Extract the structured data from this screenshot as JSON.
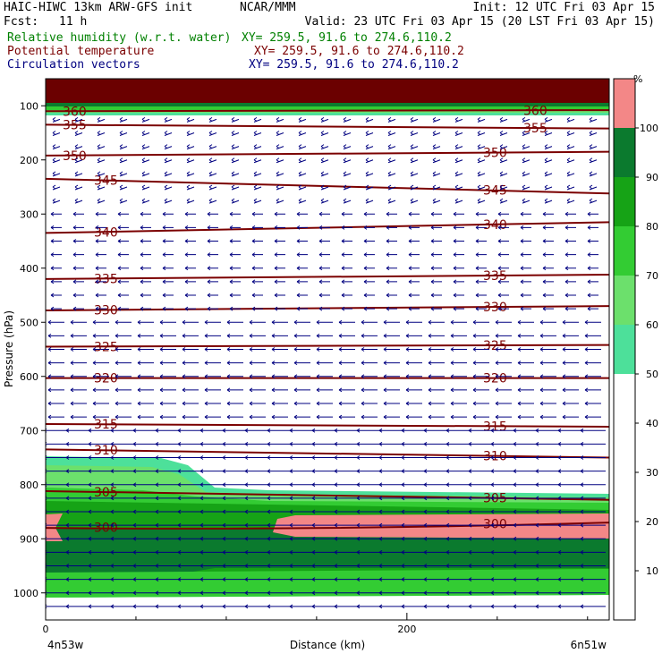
{
  "header": {
    "title": "HAIC-HIWC 13km ARW-GFS init",
    "center": "NCAR/MMM",
    "init": "Init: 12 UTC Fri 03 Apr 15",
    "fcst_label": "Fcst:",
    "fcst_value": "11 h",
    "valid": "Valid: 23 UTC Fri 03 Apr 15 (20 LST Fri 03 Apr 15)",
    "field1": "Relative humidity (w.r.t. water)",
    "field1_xy": "XY= 259.5, 91.6 to 274.6,110.2",
    "field2": "Potential temperature",
    "field2_xy": "XY= 259.5, 91.6 to 274.6,110.2",
    "field3": "Circulation vectors",
    "field3_xy": "XY= 259.5, 91.6 to 274.6,110.2"
  },
  "colors": {
    "rh_label": "#008000",
    "theta_label": "#7b0000",
    "vector_label": "#000080",
    "theta_line": "#7b0000",
    "vector": "#000080"
  },
  "chart_data": {
    "type": "heatmap",
    "xlabel": "Distance (km)",
    "ylabel": "Pressure (hPa)",
    "xlim": [
      0,
      312
    ],
    "ylim": [
      1050,
      50
    ],
    "x_ticks": [
      0,
      200
    ],
    "y_ticks": [
      100,
      200,
      300,
      400,
      500,
      600,
      700,
      800,
      900,
      1000
    ],
    "x_endpoint_labels": [
      "4n53w",
      "6n51w"
    ],
    "colorbar": {
      "unit": "%",
      "ticks": [
        10,
        20,
        30,
        40,
        50,
        60,
        70,
        80,
        90,
        100
      ],
      "levels": [
        {
          "from": 50,
          "to": 60,
          "color": "#4de09a"
        },
        {
          "from": 60,
          "to": 70,
          "color": "#6ce06c"
        },
        {
          "from": 70,
          "to": 80,
          "color": "#33cc33"
        },
        {
          "from": 80,
          "to": 90,
          "color": "#16a316"
        },
        {
          "from": 90,
          "to": 100,
          "color": "#0b7a2e"
        },
        {
          "from": 100,
          "to": 110,
          "color": "#f38787"
        }
      ]
    },
    "rh_regions": [
      {
        "level": 100,
        "color": "#6b0000",
        "pressure_top": 50,
        "pressure_bottom": 95
      },
      {
        "level": 100,
        "color": "#f38787",
        "x_from": 125,
        "x_to": 312,
        "pressure_top": 855,
        "pressure_bottom": 900
      },
      {
        "level": 90,
        "color": "#0b7a2e",
        "pressure_top": 880,
        "pressure_bottom": 960
      },
      {
        "level": 70,
        "color": "#33cc33",
        "pressure_top": 820,
        "pressure_bottom": 1010
      }
    ],
    "theta_contours": [
      {
        "label": "360",
        "p_left": 110,
        "p_right": 108
      },
      {
        "label": "355",
        "p_left": 135,
        "p_right": 142
      },
      {
        "label": "350",
        "p_left": 192,
        "p_right": 185
      },
      {
        "label": "345",
        "p_left": 235,
        "p_right": 262
      },
      {
        "label": "340",
        "p_left": 335,
        "p_right": 315
      },
      {
        "label": "335",
        "p_left": 420,
        "p_right": 412
      },
      {
        "label": "330",
        "p_left": 478,
        "p_right": 470
      },
      {
        "label": "325",
        "p_left": 545,
        "p_right": 542
      },
      {
        "label": "320",
        "p_left": 603,
        "p_right": 603
      },
      {
        "label": "315",
        "p_left": 688,
        "p_right": 693
      },
      {
        "label": "310",
        "p_left": 735,
        "p_right": 750
      },
      {
        "label": "305",
        "p_left": 812,
        "p_right": 828
      },
      {
        "label": "300",
        "p_left": 880,
        "p_right": 870
      }
    ],
    "vectors": {
      "pressure_levels_per_row": true,
      "direction": "westward"
    }
  }
}
